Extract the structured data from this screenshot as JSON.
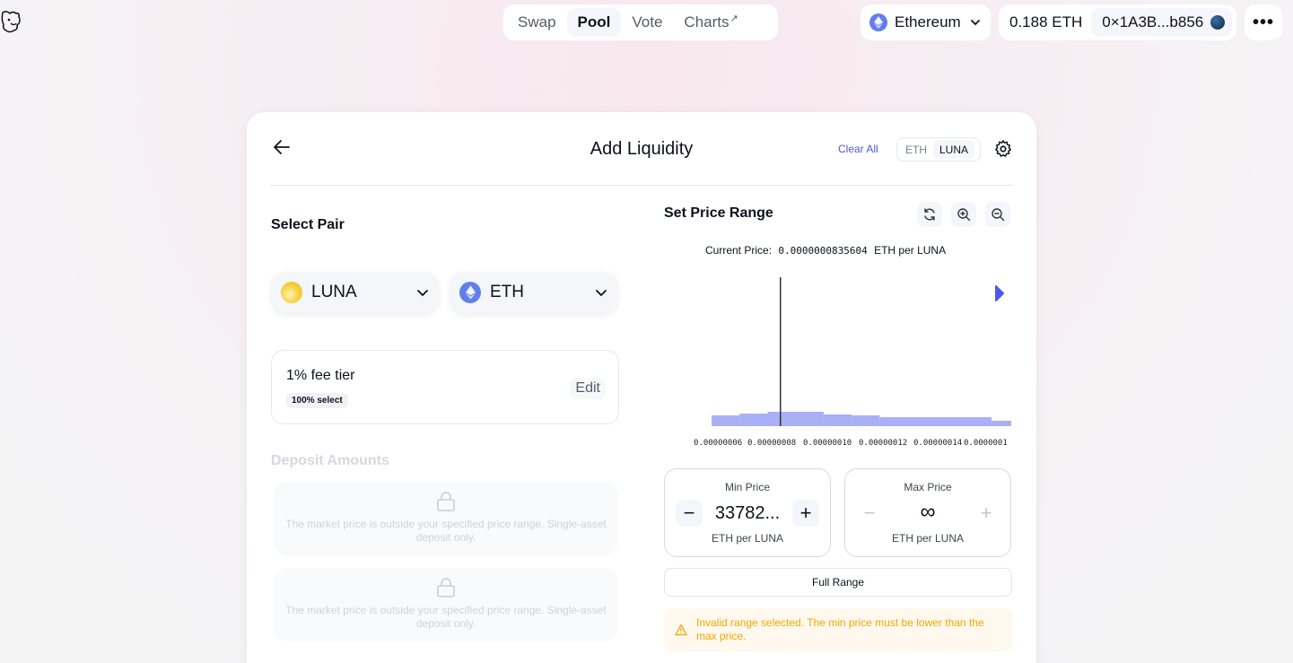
{
  "header": {
    "logo_icon": "unicorn-logo-icon",
    "nav": [
      {
        "label": "Swap",
        "active": false
      },
      {
        "label": "Pool",
        "active": true
      },
      {
        "label": "Vote",
        "active": false
      },
      {
        "label": "Charts",
        "active": false,
        "external": "↗"
      }
    ],
    "network": {
      "label": "Ethereum",
      "icon": "ethereum-icon"
    },
    "account": {
      "balance": "0.188 ETH",
      "address": "0×1A3B...b856"
    },
    "more_icon": "more-icon"
  },
  "card": {
    "title": "Add Liquidity",
    "clear_all": "Clear All",
    "toggle": {
      "options": [
        "ETH",
        "LUNA"
      ],
      "selected": "LUNA"
    },
    "select_pair": {
      "title": "Select Pair",
      "token_a": "LUNA",
      "token_b": "ETH"
    },
    "fee": {
      "title": "1% fee tier",
      "badge": "100% select",
      "edit": "Edit"
    },
    "deposit": {
      "title": "Deposit Amounts",
      "message_1": "The market price is outside your specified price range. Single-asset deposit only.",
      "message_2": "The market price is outside your specified price range. Single-asset deposit only."
    },
    "price_range": {
      "title": "Set Price Range",
      "current_price_label": "Current Price:",
      "current_price_value": "0.0000000835604",
      "current_price_unit": "ETH per LUNA",
      "min": {
        "label": "Min Price",
        "value": "33782...",
        "unit": "ETH per LUNA"
      },
      "max": {
        "label": "Max Price",
        "value": "∞",
        "unit": "ETH per LUNA"
      },
      "full_range": "Full Range",
      "warning": "Invalid range selected. The min price must be lower than the max price."
    }
  },
  "chart_data": {
    "type": "area",
    "tick_labels": [
      "0.00000006",
      "0.00000008",
      "0.00000010",
      "0.00000012",
      "0.00000014",
      "0.0000001"
    ],
    "current_price_marker": 8.35604e-08,
    "liquidity_bars": [
      {
        "x0": 5.9e-08,
        "x1": 6.9e-08,
        "h": 12
      },
      {
        "x0": 6.9e-08,
        "x1": 7.9e-08,
        "h": 14
      },
      {
        "x0": 7.9e-08,
        "x1": 9.9e-08,
        "h": 16
      },
      {
        "x0": 9.9e-08,
        "x1": 1.09e-07,
        "h": 13
      },
      {
        "x0": 1.09e-07,
        "x1": 1.19e-07,
        "h": 12
      },
      {
        "x0": 1.19e-07,
        "x1": 1.59e-07,
        "h": 10
      },
      {
        "x0": 1.59e-07,
        "x1": 1.66e-07,
        "h": 6
      }
    ],
    "x_range": [
      5e-08,
      1.66e-07
    ],
    "colors": {
      "bars": "#a9b0f5",
      "marker": "#333333",
      "handle": "#4c58f0"
    }
  }
}
